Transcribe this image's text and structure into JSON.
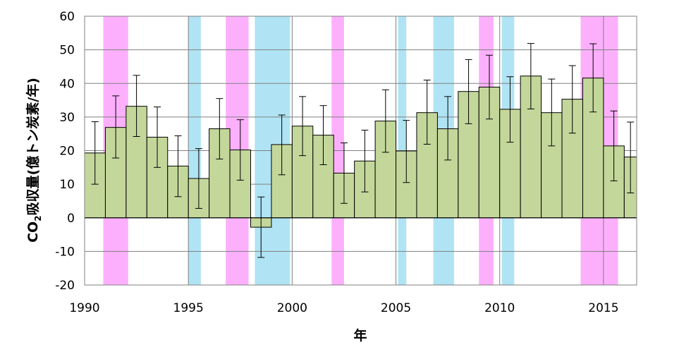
{
  "chart_data": {
    "type": "bar",
    "xlabel": "年",
    "ylabel_parts": {
      "pre": "CO",
      "sub": "2",
      "post": "吸収量(億トン炭素/年)"
    },
    "ylim": [
      -20,
      60
    ],
    "yticks": [
      60,
      50,
      40,
      30,
      20,
      10,
      0,
      -10,
      -20
    ],
    "xlim": [
      1990,
      2016.6
    ],
    "xticks": [
      1990,
      1995,
      2000,
      2005,
      2010,
      2015
    ],
    "grid": true,
    "bar_color": "#c4d79b",
    "years": [
      1990,
      1991,
      1992,
      1993,
      1994,
      1995,
      1996,
      1997,
      1998,
      1999,
      2000,
      2001,
      2002,
      2003,
      2004,
      2005,
      2006,
      2007,
      2008,
      2009,
      2010,
      2011,
      2012,
      2013,
      2014,
      2015,
      2016
    ],
    "values": [
      19.3,
      26.9,
      33.2,
      24.0,
      15.4,
      11.7,
      26.5,
      20.2,
      -2.8,
      21.8,
      27.3,
      24.6,
      13.3,
      16.9,
      28.8,
      19.9,
      31.3,
      26.5,
      37.6,
      38.9,
      32.3,
      42.2,
      31.3,
      35.3,
      41.6,
      21.4,
      18.1
    ],
    "error_high": [
      28.6,
      36.3,
      42.4,
      33.0,
      24.4,
      20.6,
      35.5,
      29.2,
      6.2,
      30.6,
      36.1,
      33.4,
      22.3,
      26.1,
      38.1,
      29.0,
      41.0,
      36.1,
      47.1,
      48.4,
      42.0,
      51.9,
      41.3,
      45.3,
      51.8,
      31.8,
      28.5
    ],
    "error_low": [
      10.0,
      17.8,
      24.2,
      15.0,
      6.3,
      2.8,
      17.5,
      11.2,
      -11.8,
      12.8,
      18.5,
      15.8,
      4.3,
      7.7,
      19.5,
      10.5,
      21.9,
      17.2,
      28.0,
      29.4,
      22.5,
      32.4,
      21.4,
      25.2,
      31.5,
      11.0,
      7.4
    ],
    "shaded_periods": {
      "pink": {
        "color": "#fcb0fc",
        "spans": [
          [
            1990.9,
            1992.1
          ],
          [
            1996.8,
            1997.9
          ],
          [
            2001.9,
            2002.5
          ],
          [
            2009.0,
            2009.7
          ],
          [
            2013.9,
            2015.7
          ]
        ]
      },
      "blue": {
        "color": "#b0e4f4",
        "spans": [
          [
            1995.0,
            1995.6
          ],
          [
            1998.2,
            1999.9
          ],
          [
            2005.1,
            2005.5
          ],
          [
            2006.8,
            2007.8
          ],
          [
            2010.1,
            2010.7
          ]
        ]
      }
    }
  }
}
